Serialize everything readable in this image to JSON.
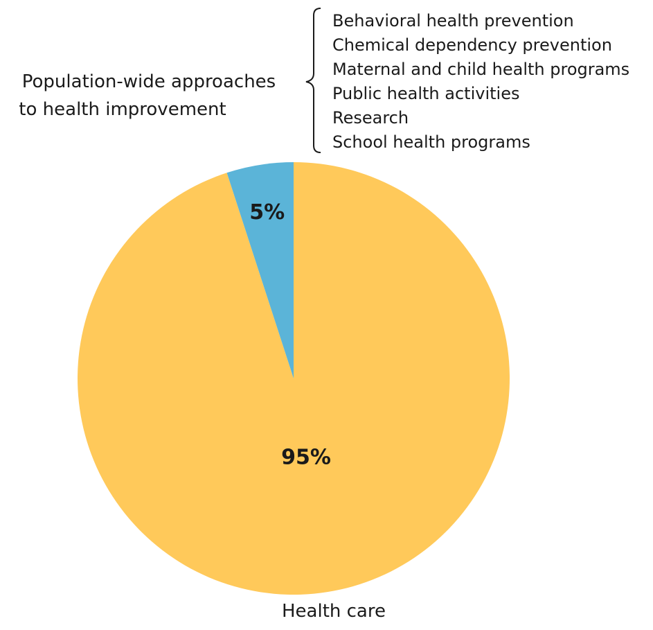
{
  "chart_data": {
    "type": "pie",
    "title": "",
    "start_angle_deg": 0,
    "direction": "counterclockwise",
    "slices": [
      {
        "label": "Population-wide approaches to health improvement",
        "label_lines": [
          "Population-wide approaches",
          "to health improvement"
        ],
        "value": 5,
        "value_label": "5%",
        "color": "#5bb4d8",
        "components": [
          "Behavioral health prevention",
          "Chemical dependency prevention",
          "Maternal and child health programs",
          "Public health activities",
          "Research",
          "School health programs"
        ]
      },
      {
        "label": "Health care",
        "value": 95,
        "value_label": "95%",
        "color": "#ffc95a"
      }
    ]
  }
}
